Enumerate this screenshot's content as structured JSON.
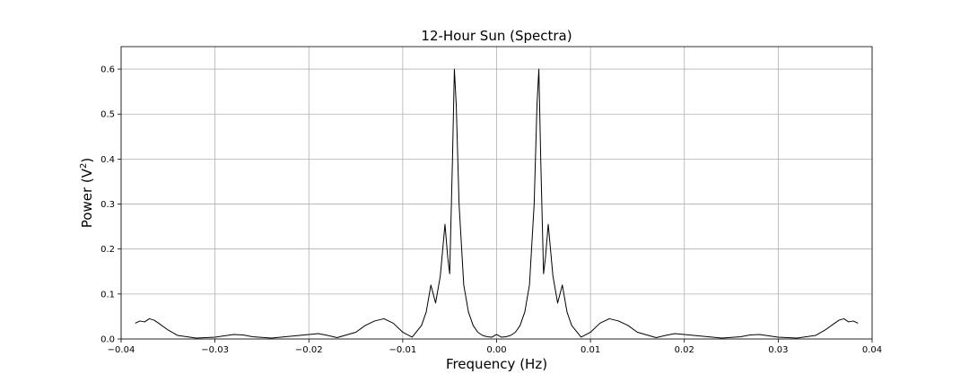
{
  "chart_data": {
    "type": "line",
    "title": "12-Hour Sun (Spectra)",
    "xlabel": "Frequency (Hz)",
    "ylabel_main": "Power (V",
    "ylabel_sup": "2",
    "ylabel_end": ")",
    "xlim": [
      -0.04,
      0.04
    ],
    "ylim": [
      0.0,
      0.65
    ],
    "xticks": [
      -0.04,
      -0.03,
      -0.02,
      -0.01,
      0.0,
      0.01,
      0.02,
      0.03,
      0.04
    ],
    "xtick_labels": [
      "−0.04",
      "−0.03",
      "−0.02",
      "−0.01",
      "0.00",
      "0.01",
      "0.02",
      "0.03",
      "0.04"
    ],
    "yticks": [
      0.0,
      0.1,
      0.2,
      0.3,
      0.4,
      0.5,
      0.6
    ],
    "ytick_labels": [
      "0.0",
      "0.1",
      "0.2",
      "0.3",
      "0.4",
      "0.5",
      "0.6"
    ],
    "grid": true,
    "line_color": "#000000",
    "series": [
      {
        "x": [
          -0.0385,
          -0.038,
          -0.0375,
          -0.037,
          -0.0365,
          -0.036,
          -0.035,
          -0.034,
          -0.032,
          -0.03,
          -0.028,
          -0.027,
          -0.026,
          -0.024,
          -0.022,
          -0.02,
          -0.019,
          -0.018,
          -0.017,
          -0.015,
          -0.014,
          -0.013,
          -0.012,
          -0.011,
          -0.01,
          -0.009,
          -0.008,
          -0.0075,
          -0.007,
          -0.0065,
          -0.006,
          -0.0055,
          -0.0052,
          -0.005,
          -0.0047,
          -0.0045,
          -0.0043,
          -0.004,
          -0.0035,
          -0.003,
          -0.0025,
          -0.002,
          -0.0015,
          -0.001,
          -0.0005,
          0.0,
          0.0005,
          0.001,
          0.0015,
          0.002,
          0.0025,
          0.003,
          0.0035,
          0.004,
          0.0043,
          0.0045,
          0.0047,
          0.005,
          0.0052,
          0.0055,
          0.006,
          0.0065,
          0.007,
          0.0075,
          0.008,
          0.009,
          0.01,
          0.011,
          0.012,
          0.013,
          0.014,
          0.015,
          0.017,
          0.018,
          0.019,
          0.02,
          0.022,
          0.024,
          0.026,
          0.027,
          0.028,
          0.03,
          0.032,
          0.034,
          0.035,
          0.036,
          0.0365,
          0.037,
          0.0375,
          0.038,
          0.0385
        ],
        "y": [
          0.035,
          0.04,
          0.038,
          0.045,
          0.042,
          0.035,
          0.02,
          0.008,
          0.002,
          0.004,
          0.01,
          0.009,
          0.005,
          0.002,
          0.006,
          0.01,
          0.012,
          0.008,
          0.003,
          0.015,
          0.03,
          0.04,
          0.045,
          0.035,
          0.015,
          0.004,
          0.03,
          0.06,
          0.12,
          0.08,
          0.14,
          0.255,
          0.18,
          0.145,
          0.4,
          0.6,
          0.52,
          0.3,
          0.12,
          0.06,
          0.03,
          0.015,
          0.008,
          0.005,
          0.004,
          0.01,
          0.004,
          0.005,
          0.008,
          0.015,
          0.03,
          0.06,
          0.12,
          0.3,
          0.52,
          0.6,
          0.4,
          0.145,
          0.18,
          0.255,
          0.14,
          0.08,
          0.12,
          0.06,
          0.03,
          0.004,
          0.015,
          0.035,
          0.045,
          0.04,
          0.03,
          0.015,
          0.003,
          0.008,
          0.012,
          0.01,
          0.006,
          0.002,
          0.005,
          0.009,
          0.01,
          0.004,
          0.002,
          0.008,
          0.02,
          0.035,
          0.042,
          0.045,
          0.038,
          0.04,
          0.035
        ]
      }
    ]
  }
}
